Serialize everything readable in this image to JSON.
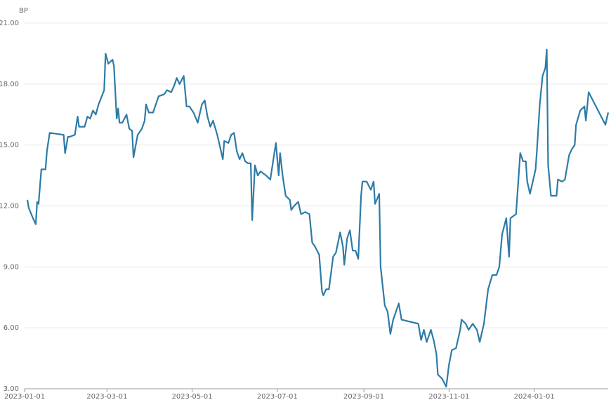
{
  "chart_data": {
    "type": "line",
    "y_label": "BP",
    "color": "#2e7ba6",
    "x": [
      "2023-01-03",
      "2023-01-04",
      "2023-01-07",
      "2023-01-09",
      "2023-01-10",
      "2023-01-11",
      "2023-01-13",
      "2023-01-16",
      "2023-01-17",
      "2023-01-19",
      "2023-01-29",
      "2023-01-30",
      "2023-02-01",
      "2023-02-02",
      "2023-02-06",
      "2023-02-08",
      "2023-02-09",
      "2023-02-13",
      "2023-02-15",
      "2023-02-17",
      "2023-02-19",
      "2023-02-21",
      "2023-02-23",
      "2023-02-27",
      "2023-02-28",
      "2023-03-02",
      "2023-03-05",
      "2023-03-06",
      "2023-03-08",
      "2023-03-09",
      "2023-03-10",
      "2023-03-12",
      "2023-03-15",
      "2023-03-17",
      "2023-03-19",
      "2023-03-20",
      "2023-03-23",
      "2023-03-26",
      "2023-03-28",
      "2023-03-29",
      "2023-03-31",
      "2023-04-03",
      "2023-04-07",
      "2023-04-11",
      "2023-04-13",
      "2023-04-16",
      "2023-04-18",
      "2023-04-20",
      "2023-04-22",
      "2023-04-25",
      "2023-04-27",
      "2023-04-29",
      "2023-05-02",
      "2023-05-05",
      "2023-05-08",
      "2023-05-10",
      "2023-05-12",
      "2023-05-14",
      "2023-05-16",
      "2023-05-19",
      "2023-05-23",
      "2023-05-24",
      "2023-05-27",
      "2023-05-29",
      "2023-05-31",
      "2023-06-02",
      "2023-06-04",
      "2023-06-06",
      "2023-06-08",
      "2023-06-10",
      "2023-06-12",
      "2023-06-13",
      "2023-06-15",
      "2023-06-17",
      "2023-06-19",
      "2023-06-23",
      "2023-06-26",
      "2023-06-28",
      "2023-06-30",
      "2023-07-02",
      "2023-07-03",
      "2023-07-05",
      "2023-07-07",
      "2023-07-10",
      "2023-07-11",
      "2023-07-13",
      "2023-07-16",
      "2023-07-18",
      "2023-07-21",
      "2023-07-24",
      "2023-07-26",
      "2023-07-28",
      "2023-07-31",
      "2023-08-02",
      "2023-08-03",
      "2023-08-05",
      "2023-08-07",
      "2023-08-10",
      "2023-08-12",
      "2023-08-15",
      "2023-08-17",
      "2023-08-18",
      "2023-08-20",
      "2023-08-22",
      "2023-08-24",
      "2023-08-26",
      "2023-08-28",
      "2023-08-30",
      "2023-08-31",
      "2023-09-03",
      "2023-09-06",
      "2023-09-08",
      "2023-09-09",
      "2023-09-12",
      "2023-09-13",
      "2023-09-16",
      "2023-09-18",
      "2023-09-20",
      "2023-09-22",
      "2023-09-26",
      "2023-09-28",
      "2023-10-10",
      "2023-10-12",
      "2023-10-14",
      "2023-10-16",
      "2023-10-19",
      "2023-10-21",
      "2023-10-23",
      "2023-10-24",
      "2023-10-27",
      "2023-10-30",
      "2023-11-01",
      "2023-11-03",
      "2023-11-06",
      "2023-11-09",
      "2023-11-10",
      "2023-11-13",
      "2023-11-15",
      "2023-11-18",
      "2023-11-21",
      "2023-11-23",
      "2023-11-26",
      "2023-11-29",
      "2023-12-02",
      "2023-12-05",
      "2023-12-07",
      "2023-12-09",
      "2023-12-12",
      "2023-12-14",
      "2023-12-15",
      "2023-12-19",
      "2023-12-22",
      "2023-12-24",
      "2023-12-26",
      "2023-12-27",
      "2023-12-29",
      "2024-01-02",
      "2024-01-03",
      "2024-01-05",
      "2024-01-07",
      "2024-01-09",
      "2024-01-10",
      "2024-01-11",
      "2024-01-13",
      "2024-01-17",
      "2024-01-18",
      "2024-01-21",
      "2024-01-23",
      "2024-01-26",
      "2024-01-28",
      "2024-01-30",
      "2024-01-31",
      "2024-02-03",
      "2024-02-06",
      "2024-02-07",
      "2024-02-09",
      "2024-02-21",
      "2024-02-23"
    ],
    "values": [
      12.3,
      11.9,
      11.4,
      11.1,
      12.2,
      12.1,
      13.8,
      13.8,
      14.7,
      15.6,
      15.5,
      14.6,
      15.4,
      15.4,
      15.5,
      16.4,
      15.9,
      15.9,
      16.4,
      16.3,
      16.7,
      16.5,
      17.0,
      17.7,
      19.5,
      19.0,
      19.2,
      18.9,
      16.3,
      16.8,
      16.1,
      16.1,
      16.5,
      15.8,
      15.7,
      14.4,
      15.5,
      15.8,
      16.2,
      17.0,
      16.6,
      16.6,
      17.4,
      17.5,
      17.7,
      17.6,
      17.9,
      18.3,
      18.0,
      18.4,
      16.9,
      16.9,
      16.6,
      16.1,
      17.0,
      17.2,
      16.4,
      15.9,
      16.2,
      15.5,
      14.3,
      15.2,
      15.1,
      15.5,
      15.6,
      14.7,
      14.3,
      14.6,
      14.2,
      14.1,
      14.1,
      11.3,
      14.0,
      13.5,
      13.7,
      13.5,
      13.3,
      14.2,
      15.1,
      13.5,
      14.6,
      13.4,
      12.5,
      12.3,
      11.8,
      12.0,
      12.2,
      11.6,
      11.7,
      11.6,
      10.2,
      10.0,
      9.6,
      7.8,
      7.6,
      7.9,
      7.9,
      9.5,
      9.7,
      10.7,
      10.0,
      9.1,
      10.4,
      10.8,
      9.8,
      9.8,
      9.4,
      12.5,
      13.2,
      13.2,
      12.8,
      13.2,
      12.1,
      12.6,
      9.0,
      7.1,
      6.8,
      5.7,
      6.4,
      7.2,
      6.4,
      6.2,
      5.4,
      5.9,
      5.3,
      5.9,
      5.4,
      4.7,
      3.7,
      3.5,
      3.1,
      4.2,
      4.9,
      5.0,
      5.9,
      6.4,
      6.2,
      5.9,
      6.2,
      5.9,
      5.3,
      6.2,
      7.9,
      8.6,
      8.6,
      9.0,
      10.6,
      11.4,
      9.5,
      11.4,
      11.6,
      14.6,
      14.2,
      14.2,
      13.2,
      12.6,
      13.8,
      14.8,
      17.0,
      18.4,
      18.8,
      19.7,
      14.0,
      12.5,
      12.5,
      13.3,
      13.2,
      13.3,
      14.5,
      14.8,
      15.0,
      16.0,
      16.7,
      16.9,
      16.2,
      17.6,
      16.0,
      16.6
    ],
    "xlim": [
      "2023-01-01",
      "2024-02-23"
    ],
    "xticks": [
      "2023-01-01",
      "2023-03-01",
      "2023-05-01",
      "2023-07-01",
      "2023-09-01",
      "2023-11-01",
      "2024-01-01"
    ],
    "ylim": [
      3,
      21
    ],
    "yticks": [
      {
        "value": 3,
        "label": "3.00"
      },
      {
        "value": 6,
        "label": "6.00"
      },
      {
        "value": 9,
        "label": "9.00"
      },
      {
        "value": 12,
        "label": "12.00"
      },
      {
        "value": 15,
        "label": "15.00"
      },
      {
        "value": 18,
        "label": "18.00"
      },
      {
        "value": 21,
        "label": "21.00"
      }
    ],
    "grid": true
  }
}
